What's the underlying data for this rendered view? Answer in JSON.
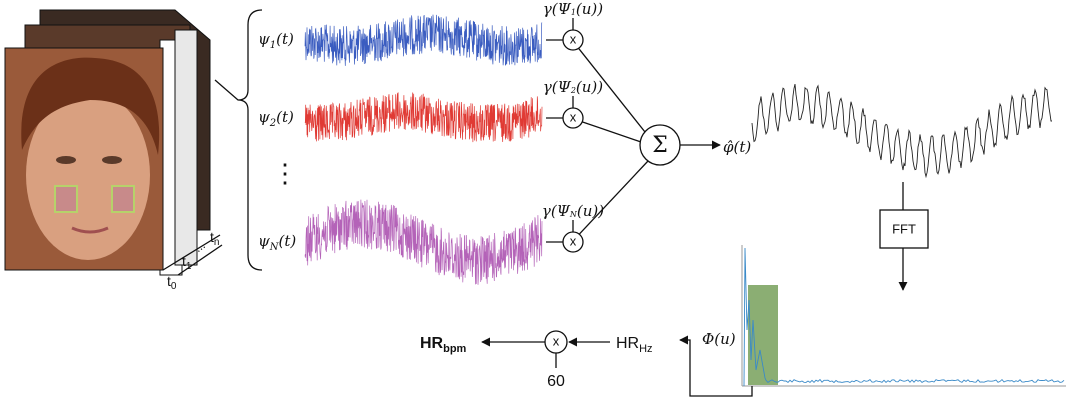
{
  "frames": {
    "labels": [
      {
        "base": "t",
        "sub": "0"
      },
      {
        "base": "t",
        "sub": "1"
      },
      {
        "base": "t",
        "sub": "n"
      }
    ],
    "ellipsis": "..."
  },
  "signals": [
    {
      "symbol": "ψ",
      "sub": "1",
      "arg": "(t)",
      "color": "#3a5cc0",
      "weight": {
        "fn": "γ(Ψ",
        "sub": "1",
        "arg": "(u))"
      }
    },
    {
      "symbol": "ψ",
      "sub": "2",
      "arg": "(t)",
      "color": "#e03a34",
      "weight": {
        "fn": "γ(Ψ",
        "sub": "2",
        "arg": "(u))"
      }
    },
    {
      "symbol": "ψ",
      "sub": "N",
      "arg": "(t)",
      "color": "#b463b8",
      "weight": {
        "fn": "γ(Ψ",
        "sub": "N",
        "arg": "(u))"
      }
    }
  ],
  "vertical_dots": "⋮",
  "multiply": "x",
  "sum": "Σ",
  "combined": {
    "label": "φ̂(t)"
  },
  "fft": "FFT",
  "spectrum": {
    "label": "Φ(u)"
  },
  "hr_hz": {
    "base": "HR",
    "sub": "Hz"
  },
  "hr_bpm": {
    "base": "HR",
    "sub": "bpm"
  },
  "factor": "60"
}
